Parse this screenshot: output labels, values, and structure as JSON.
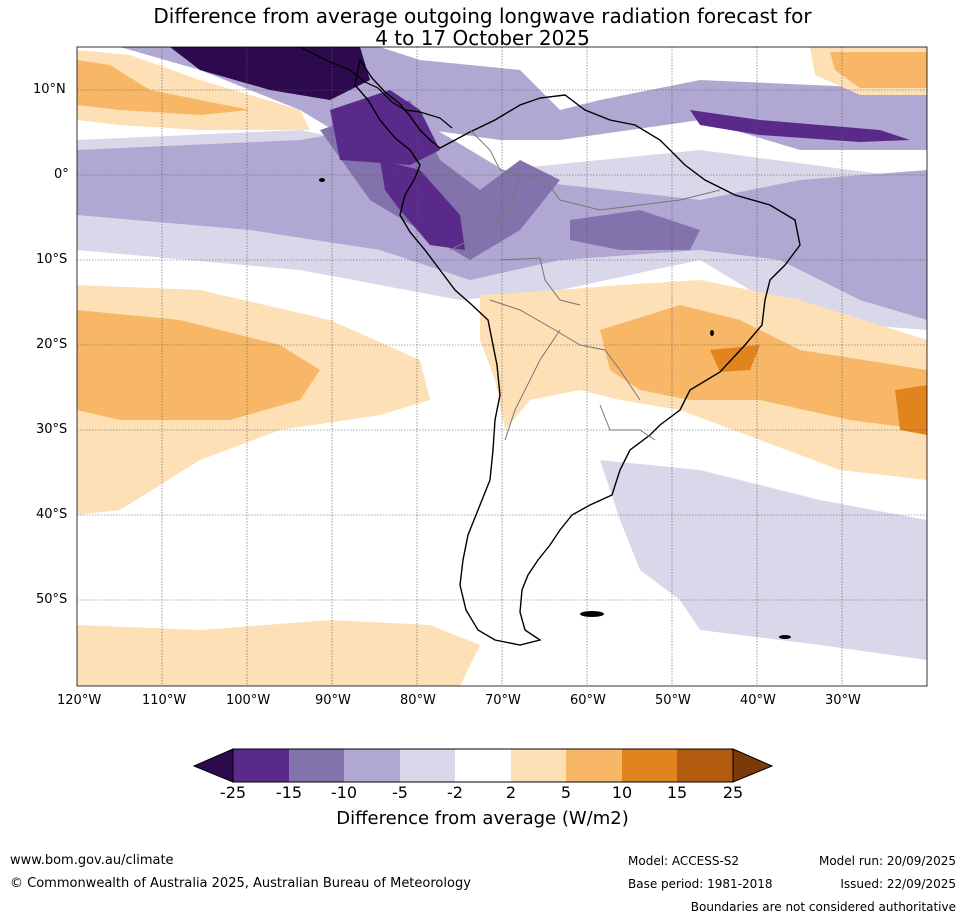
{
  "title_line1": "Difference from average outgoing longwave radiation forecast for",
  "title_line2": "4 to 17 October 2025",
  "lat_labels": [
    "10°N",
    "0°",
    "10°S",
    "20°S",
    "30°S",
    "40°S",
    "50°S"
  ],
  "lon_labels": [
    "120°W",
    "110°W",
    "100°W",
    "90°W",
    "80°W",
    "70°W",
    "60°W",
    "50°W",
    "40°W",
    "30°W"
  ],
  "colorbar": {
    "bins": [
      {
        "color": "#2d0a4e"
      },
      {
        "color": "#5a2a8a"
      },
      {
        "color": "#8373ad"
      },
      {
        "color": "#b0a8d2"
      },
      {
        "color": "#d9d8ea"
      },
      {
        "color": "#ffffff"
      },
      {
        "color": "#fde0b6"
      },
      {
        "color": "#f8b766"
      },
      {
        "color": "#e2841d"
      },
      {
        "color": "#b35a0f"
      },
      {
        "color": "#7b3a0a"
      }
    ],
    "tick_labels": [
      "-25",
      "-15",
      "-10",
      "-5",
      "-2",
      "2",
      "5",
      "10",
      "15",
      "25"
    ],
    "title": "Difference from average (W/m2)"
  },
  "footer": {
    "website": "www.bom.gov.au/climate",
    "copyright": "© Commonwealth of Australia 2025, Australian Bureau of Meteorology",
    "model": "Model: ACCESS-S2",
    "base_period": "Base period: 1981-2018",
    "model_run": "Model run: 20/09/2025",
    "issued": "Issued: 22/09/2025",
    "disclaimer": "Boundaries are not considered authoritative"
  }
}
